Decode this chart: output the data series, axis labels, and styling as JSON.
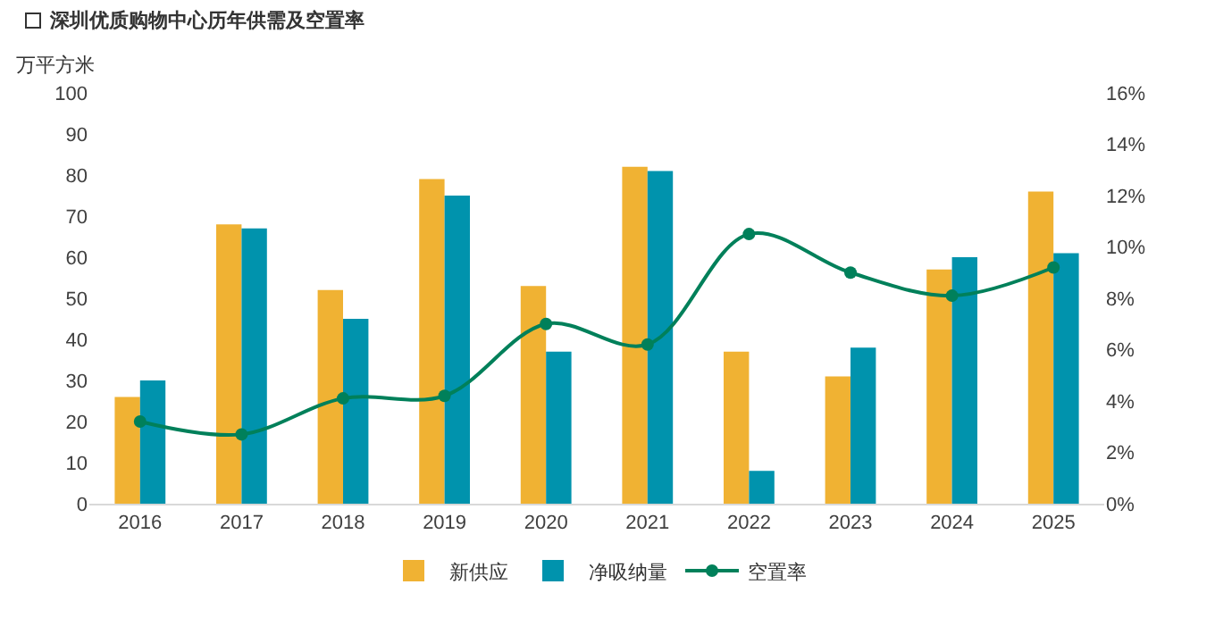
{
  "chart_data": {
    "type": "bar",
    "title": "深圳优质购物中心历年供需及空置率",
    "ylabel": "万平方米",
    "categories": [
      "2016",
      "2017",
      "2018",
      "2019",
      "2020",
      "2021",
      "2022",
      "2023",
      "2024",
      "2025"
    ],
    "series": [
      {
        "name": "新供应",
        "color": "#f0b233",
        "values": [
          26,
          68,
          52,
          79,
          53,
          82,
          37,
          31,
          57,
          76
        ]
      },
      {
        "name": "净吸纳量",
        "color": "#0093ad",
        "values": [
          30,
          67,
          45,
          75,
          37,
          81,
          8,
          38,
          60,
          61
        ]
      },
      {
        "name": "空置率",
        "type": "line",
        "axis": "y2",
        "color": "#00805a",
        "marker": "circle",
        "values": [
          3.2,
          2.7,
          4.1,
          4.2,
          7.0,
          6.2,
          10.5,
          9.0,
          8.1,
          9.2
        ]
      }
    ],
    "ylim": [
      0,
      100
    ],
    "yticks": [
      0,
      10,
      20,
      30,
      40,
      50,
      60,
      70,
      80,
      90,
      100
    ],
    "y2lim": [
      0,
      16
    ],
    "y2ticks": [
      {
        "value": 0,
        "label": "0%"
      },
      {
        "value": 2,
        "label": "2%"
      },
      {
        "value": 4,
        "label": "4%"
      },
      {
        "value": 6,
        "label": "6%"
      },
      {
        "value": 8,
        "label": "8%"
      },
      {
        "value": 10,
        "label": "10%"
      },
      {
        "value": 12,
        "label": "12%"
      },
      {
        "value": 14,
        "label": "14%"
      },
      {
        "value": 16,
        "label": "16%"
      }
    ],
    "grid": false,
    "legend": "bottom"
  }
}
